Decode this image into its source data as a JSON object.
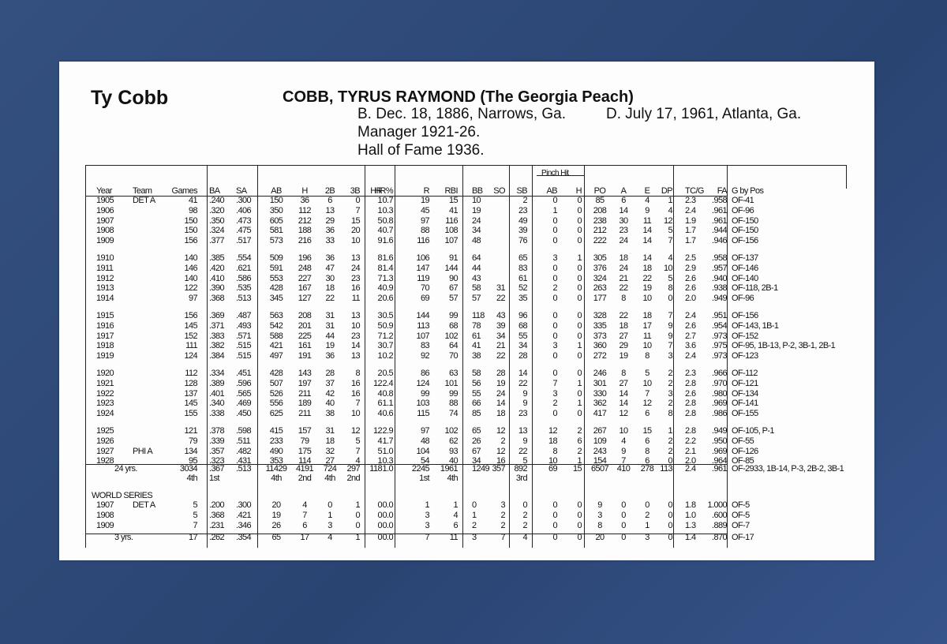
{
  "header": {
    "short_name": "Ty Cobb",
    "full_name": "COBB, TYRUS RAYMOND (The Georgia Peach)",
    "born": "B. Dec. 18, 1886, Narrows, Ga.",
    "died": "D. July 17, 1961, Atlanta, Ga.",
    "manager": "Manager 1921-26.",
    "hof": "Hall of Fame 1936."
  },
  "table": {
    "group_header": "Pinch Hit",
    "columns": [
      "Year",
      "Team",
      "Games",
      "BA",
      "SA",
      "AB",
      "H",
      "2B",
      "3B",
      "HR",
      "HR%",
      "R",
      "RBI",
      "BB",
      "SO",
      "SB",
      "AB",
      "H",
      "PO",
      "A",
      "E",
      "DP",
      "TC/G",
      "FA",
      "G by Pos"
    ],
    "rows": [
      [
        "1905",
        "DET A",
        "41",
        ".240",
        ".300",
        "150",
        "36",
        "6",
        "0",
        "1",
        "0.7",
        "19",
        "15",
        "10",
        null,
        "2",
        "0",
        "0",
        "85",
        "6",
        "4",
        "1",
        "2.3",
        ".958",
        "OF-41"
      ],
      [
        "1906",
        null,
        "98",
        ".320",
        ".406",
        "350",
        "112",
        "13",
        "7",
        "1",
        "0.3",
        "45",
        "41",
        "19",
        null,
        "23",
        "1",
        "0",
        "208",
        "14",
        "9",
        "4",
        "2.4",
        ".961",
        "OF-96"
      ],
      [
        "1907",
        null,
        "150",
        ".350",
        ".473",
        "605",
        "212",
        "29",
        "15",
        "5",
        "0.8",
        "97",
        "116",
        "24",
        null,
        "49",
        "0",
        "0",
        "238",
        "30",
        "11",
        "12",
        "1.9",
        ".961",
        "OF-150"
      ],
      [
        "1908",
        null,
        "150",
        ".324",
        ".475",
        "581",
        "188",
        "36",
        "20",
        "4",
        "0.7",
        "88",
        "108",
        "34",
        null,
        "39",
        "0",
        "0",
        "212",
        "23",
        "14",
        "5",
        "1.7",
        ".944",
        "OF-150"
      ],
      [
        "1909",
        null,
        "156",
        ".377",
        ".517",
        "573",
        "216",
        "33",
        "10",
        "9",
        "1.6",
        "116",
        "107",
        "48",
        null,
        "76",
        "0",
        "0",
        "222",
        "24",
        "14",
        "7",
        "1.7",
        ".946",
        "OF-156"
      ],
      [
        "1910",
        null,
        "140",
        ".385",
        ".554",
        "509",
        "196",
        "36",
        "13",
        "8",
        "1.6",
        "106",
        "91",
        "64",
        null,
        "65",
        "3",
        "1",
        "305",
        "18",
        "14",
        "4",
        "2.5",
        ".958",
        "OF-137"
      ],
      [
        "1911",
        null,
        "146",
        ".420",
        ".621",
        "591",
        "248",
        "47",
        "24",
        "8",
        "1.4",
        "147",
        "144",
        "44",
        null,
        "83",
        "0",
        "0",
        "376",
        "24",
        "18",
        "10",
        "2.9",
        ".957",
        "OF-146"
      ],
      [
        "1912",
        null,
        "140",
        ".410",
        ".586",
        "553",
        "227",
        "30",
        "23",
        "7",
        "1.3",
        "119",
        "90",
        "43",
        null,
        "61",
        "0",
        "0",
        "324",
        "21",
        "22",
        "5",
        "2.6",
        ".940",
        "OF-140"
      ],
      [
        "1913",
        null,
        "122",
        ".390",
        ".535",
        "428",
        "167",
        "18",
        "16",
        "4",
        "0.9",
        "70",
        "67",
        "58",
        "31",
        "52",
        "2",
        "0",
        "263",
        "22",
        "19",
        "8",
        "2.6",
        ".938",
        "OF-118, 2B-1"
      ],
      [
        "1914",
        null,
        "97",
        ".368",
        ".513",
        "345",
        "127",
        "22",
        "11",
        "2",
        "0.6",
        "69",
        "57",
        "57",
        "22",
        "35",
        "0",
        "0",
        "177",
        "8",
        "10",
        "0",
        "2.0",
        ".949",
        "OF-96"
      ],
      [
        "1915",
        null,
        "156",
        ".369",
        ".487",
        "563",
        "208",
        "31",
        "13",
        "3",
        "0.5",
        "144",
        "99",
        "118",
        "43",
        "96",
        "0",
        "0",
        "328",
        "22",
        "18",
        "7",
        "2.4",
        ".951",
        "OF-156"
      ],
      [
        "1916",
        null,
        "145",
        ".371",
        ".493",
        "542",
        "201",
        "31",
        "10",
        "5",
        "0.9",
        "113",
        "68",
        "78",
        "39",
        "68",
        "0",
        "0",
        "335",
        "18",
        "17",
        "9",
        "2.6",
        ".954",
        "OF-143, 1B-1"
      ],
      [
        "1917",
        null,
        "152",
        ".383",
        ".571",
        "588",
        "225",
        "44",
        "23",
        "7",
        "1.2",
        "107",
        "102",
        "61",
        "34",
        "55",
        "0",
        "0",
        "373",
        "27",
        "11",
        "9",
        "2.7",
        ".973",
        "OF-152"
      ],
      [
        "1918",
        null,
        "111",
        ".382",
        ".515",
        "421",
        "161",
        "19",
        "14",
        "3",
        "0.7",
        "83",
        "64",
        "41",
        "21",
        "34",
        "3",
        "1",
        "360",
        "29",
        "10",
        "7",
        "3.6",
        ".975",
        "OF-95, 1B-13, P-2, 3B-1, 2B-1"
      ],
      [
        "1919",
        null,
        "124",
        ".384",
        ".515",
        "497",
        "191",
        "36",
        "13",
        "1",
        "0.2",
        "92",
        "70",
        "38",
        "22",
        "28",
        "0",
        "0",
        "272",
        "19",
        "8",
        "3",
        "2.4",
        ".973",
        "OF-123"
      ],
      [
        "1920",
        null,
        "112",
        ".334",
        ".451",
        "428",
        "143",
        "28",
        "8",
        "2",
        "0.5",
        "86",
        "63",
        "58",
        "28",
        "14",
        "0",
        "0",
        "246",
        "8",
        "5",
        "2",
        "2.3",
        ".966",
        "OF-112"
      ],
      [
        "1921",
        null,
        "128",
        ".389",
        ".596",
        "507",
        "197",
        "37",
        "16",
        "12",
        "2.4",
        "124",
        "101",
        "56",
        "19",
        "22",
        "7",
        "1",
        "301",
        "27",
        "10",
        "2",
        "2.8",
        ".970",
        "OF-121"
      ],
      [
        "1922",
        null,
        "137",
        ".401",
        ".565",
        "526",
        "211",
        "42",
        "16",
        "4",
        "0.8",
        "99",
        "99",
        "55",
        "24",
        "9",
        "3",
        "0",
        "330",
        "14",
        "7",
        "3",
        "2.6",
        ".980",
        "OF-134"
      ],
      [
        "1923",
        null,
        "145",
        ".340",
        ".469",
        "556",
        "189",
        "40",
        "7",
        "6",
        "1.1",
        "103",
        "88",
        "66",
        "14",
        "9",
        "2",
        "1",
        "362",
        "14",
        "12",
        "2",
        "2.8",
        ".969",
        "OF-141"
      ],
      [
        "1924",
        null,
        "155",
        ".338",
        ".450",
        "625",
        "211",
        "38",
        "10",
        "4",
        "0.6",
        "115",
        "74",
        "85",
        "18",
        "23",
        "0",
        "0",
        "417",
        "12",
        "6",
        "8",
        "2.8",
        ".986",
        "OF-155"
      ],
      [
        "1925",
        null,
        "121",
        ".378",
        ".598",
        "415",
        "157",
        "31",
        "12",
        "12",
        "2.9",
        "97",
        "102",
        "65",
        "12",
        "13",
        "12",
        "2",
        "267",
        "10",
        "15",
        "1",
        "2.8",
        ".949",
        "OF-105, P-1"
      ],
      [
        "1926",
        null,
        "79",
        ".339",
        ".511",
        "233",
        "79",
        "18",
        "5",
        "4",
        "1.7",
        "48",
        "62",
        "26",
        "2",
        "9",
        "18",
        "6",
        "109",
        "4",
        "6",
        "2",
        "2.2",
        ".950",
        "OF-55"
      ],
      [
        "1927",
        "PHI A",
        "134",
        ".357",
        ".482",
        "490",
        "175",
        "32",
        "7",
        "5",
        "1.0",
        "104",
        "93",
        "67",
        "12",
        "22",
        "8",
        "2",
        "243",
        "9",
        "8",
        "2",
        "2.1",
        ".969",
        "OF-126"
      ],
      [
        "1928",
        null,
        "95",
        ".323",
        ".431",
        "353",
        "114",
        "27",
        "4",
        "1",
        "0.3",
        "54",
        "40",
        "34",
        "16",
        "5",
        "10",
        "1",
        "154",
        "7",
        "6",
        "0",
        "2.0",
        ".964",
        "OF-85"
      ]
    ],
    "totals": [
      "24 yrs.",
      null,
      "3034",
      ".367",
      ".513",
      "11429",
      "4191",
      "724",
      "297",
      "118",
      "1.0",
      "2245",
      "1961",
      "1249",
      "357",
      "892",
      "69",
      "15",
      "6507",
      "410",
      "278",
      "113",
      "2.4",
      ".961",
      "OF-2933, 1B-14, P-3, 2B-2, 3B-1"
    ],
    "ranks": [
      null,
      null,
      "4th",
      "1st",
      null,
      "4th",
      "2nd",
      "4th",
      "2nd",
      null,
      null,
      "1st",
      "4th",
      null,
      null,
      "3rd",
      null,
      null,
      null,
      null,
      null,
      null,
      null,
      null,
      null
    ],
    "world_series": {
      "label": "WORLD SERIES",
      "rows": [
        [
          "1907",
          "DET A",
          "5",
          ".200",
          ".300",
          "20",
          "4",
          "0",
          "1",
          "0",
          "0.0",
          "1",
          "1",
          "0",
          "3",
          "0",
          "0",
          "0",
          "9",
          "0",
          "0",
          "0",
          "1.8",
          "1.000",
          "OF-5"
        ],
        [
          "1908",
          null,
          "5",
          ".368",
          ".421",
          "19",
          "7",
          "1",
          "0",
          "0",
          "0.0",
          "3",
          "4",
          "1",
          "2",
          "2",
          "0",
          "0",
          "3",
          "0",
          "2",
          "0",
          "1.0",
          ".600",
          "OF-5"
        ],
        [
          "1909",
          null,
          "7",
          ".231",
          ".346",
          "26",
          "6",
          "3",
          "0",
          "0",
          "0.0",
          "3",
          "6",
          "2",
          "2",
          "2",
          "0",
          "0",
          "8",
          "0",
          "1",
          "0",
          "1.3",
          ".889",
          "OF-7"
        ]
      ],
      "totals": [
        "3 yrs.",
        null,
        "17",
        ".262",
        ".354",
        "65",
        "17",
        "4",
        "1",
        "0",
        "0.0",
        "7",
        "11",
        "3",
        "7",
        "4",
        "0",
        "0",
        "20",
        "0",
        "3",
        "0",
        "1.4",
        ".870",
        "OF-17"
      ]
    }
  }
}
